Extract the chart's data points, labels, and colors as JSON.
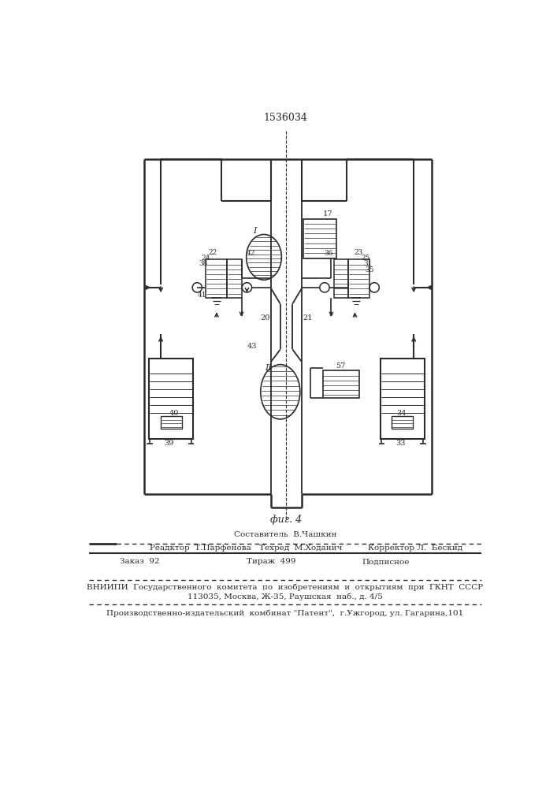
{
  "patent_number": "1536034",
  "fig_label": "фиг. 4",
  "bg_color": "#ffffff",
  "line_color": "#2a2a2a",
  "footer_line0": "Составитель  В.Чашкин",
  "footer_line1": "Реадктор  Т.Парфенова",
  "footer_line1b": "Техред  М.Ходанич",
  "footer_line1c": "Корректор Л.  Бескид",
  "footer_line2a": "Заказ  92",
  "footer_line2b": "Тираж  499",
  "footer_line2c": "Подписное",
  "footer_line3": "ВНИИПИ  Государственного  комитета  по  изобретениям  и  открытиям  при  ГКНТ  СССР",
  "footer_line4": "113035, Москва, Ж-35, Раушская  наб., д. 4/5",
  "footer_line5": "Производственно-издательский  комбинат \"Патент\",  г.Ужгород, ул. Гагарина,101"
}
